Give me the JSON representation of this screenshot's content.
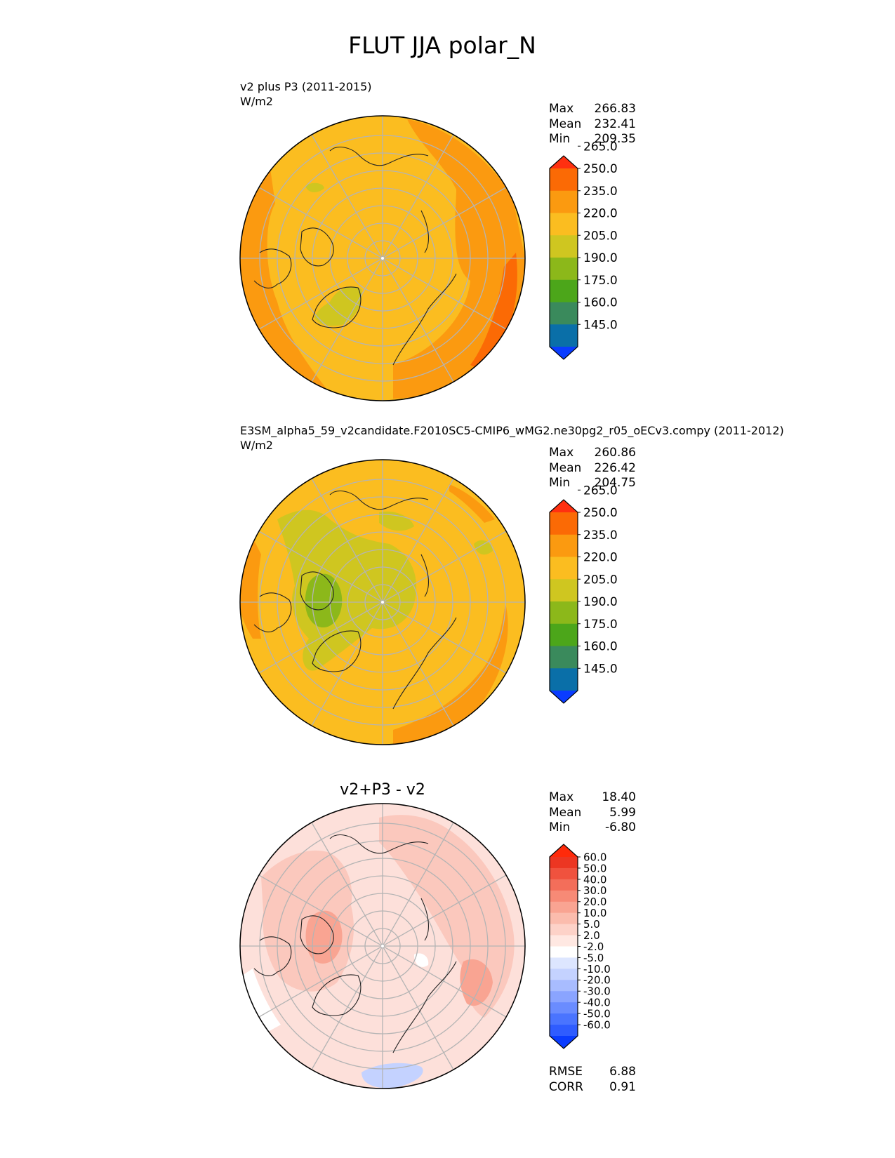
{
  "title": "FLUT JJA polar_N",
  "chart_data": [
    {
      "type": "heatmap",
      "projection": "north-polar-stereographic",
      "title_line1": "v2 plus P3 (2011-2015)",
      "title_line2": "W/m2",
      "base_fill": "#fbbd20",
      "rim_fill": "#fb9a10",
      "stats": [
        {
          "label": "Max",
          "value": "266.83"
        },
        {
          "label": "Mean",
          "value": "232.41"
        },
        {
          "label": "Min",
          "value": "209.35"
        }
      ],
      "colorbar": {
        "colors": [
          "#0a3cff",
          "#0a6fa8",
          "#3a8a5c",
          "#4ca61a",
          "#8cb81a",
          "#cfc620",
          "#fbbd20",
          "#fb9a10",
          "#fb6a05",
          "#ff3010"
        ],
        "tick_labels": [
          "145.0",
          "160.0",
          "175.0",
          "190.0",
          "205.0",
          "220.0",
          "235.0",
          "250.0",
          "265.0"
        ]
      }
    },
    {
      "type": "heatmap",
      "projection": "north-polar-stereographic",
      "title_line1": "E3SM_alpha5_59_v2candidate.F2010SC5-CMIP6_wMG2.ne30pg2_r05_oECv3.compy (2011-2012)",
      "title_line2": "W/m2",
      "base_fill": "#fbbd20",
      "rim_fill": "#fb9a10",
      "stats": [
        {
          "label": "Max",
          "value": "260.86"
        },
        {
          "label": "Mean",
          "value": "226.42"
        },
        {
          "label": "Min",
          "value": "204.75"
        }
      ],
      "colorbar": {
        "colors": [
          "#0a3cff",
          "#0a6fa8",
          "#3a8a5c",
          "#4ca61a",
          "#8cb81a",
          "#cfc620",
          "#fbbd20",
          "#fb9a10",
          "#fb6a05",
          "#ff3010"
        ],
        "tick_labels": [
          "145.0",
          "160.0",
          "175.0",
          "190.0",
          "205.0",
          "220.0",
          "235.0",
          "250.0",
          "265.0"
        ]
      }
    },
    {
      "type": "heatmap",
      "projection": "north-polar-stereographic",
      "title": "v2+P3 - v2",
      "base_fill": "#fde0da",
      "rim_fill": "#fbc8bd",
      "stats": [
        {
          "label": "Max",
          "value": "18.40"
        },
        {
          "label": "Mean",
          "value": "5.99"
        },
        {
          "label": "Min",
          "value": "-6.80"
        }
      ],
      "colorbar": {
        "colors": [
          "#0a3cff",
          "#2f5cff",
          "#4a74ff",
          "#6a8cff",
          "#8aa4ff",
          "#a8bcff",
          "#c4d2ff",
          "#dde6ff",
          "#ffffff",
          "#ffe8e2",
          "#fdd2c8",
          "#fbbcad",
          "#f9a492",
          "#f78a76",
          "#f36e5a",
          "#f0523e",
          "#ec3622",
          "#ff2a0a"
        ],
        "tick_labels": [
          "-60.0",
          "-50.0",
          "-40.0",
          "-30.0",
          "-20.0",
          "-10.0",
          "-5.0",
          "-2.0",
          "2.0",
          "5.0",
          "10.0",
          "20.0",
          "30.0",
          "40.0",
          "50.0",
          "60.0"
        ]
      },
      "metrics": [
        {
          "label": "RMSE",
          "value": "6.88"
        },
        {
          "label": "CORR",
          "value": "0.91"
        }
      ]
    }
  ]
}
